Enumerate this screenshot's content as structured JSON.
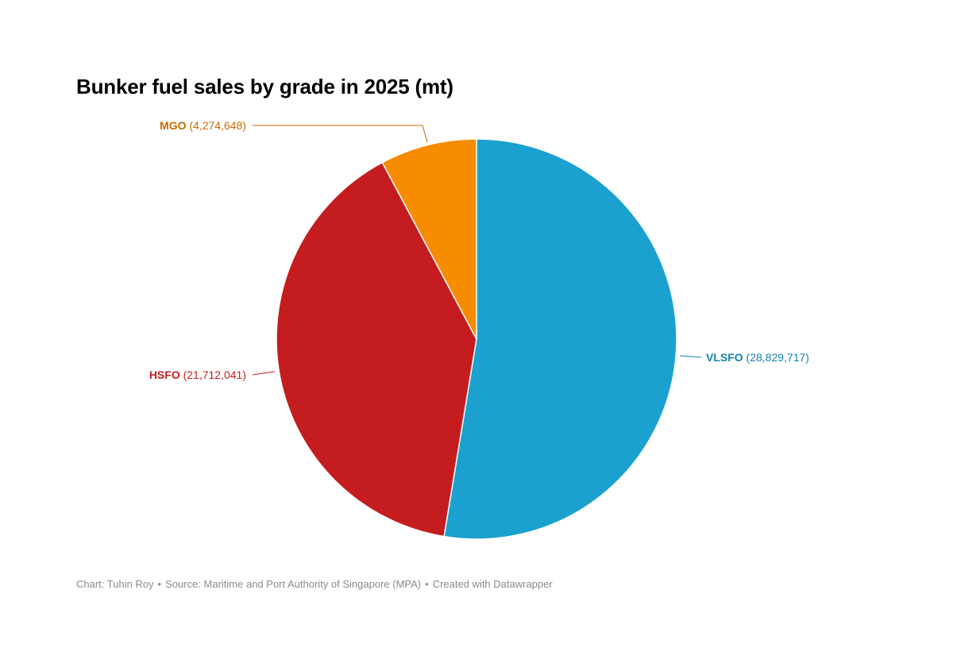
{
  "chart_data": {
    "type": "pie",
    "title": "Bunker fuel sales by grade in 2025 (mt)",
    "unit": "mt",
    "slices": [
      {
        "name": "VLSFO",
        "value": 28829717,
        "display": "(28,829,717)",
        "color": "#1aa1cf"
      },
      {
        "name": "HSFO",
        "value": 21712041,
        "display": "(21,712,041)",
        "color": "#c51d1f"
      },
      {
        "name": "MGO",
        "value": 4274648,
        "display": "(4,274,648)",
        "color": "#f78c00"
      }
    ],
    "label_colors": {
      "VLSFO": "#1283aa",
      "HSFO": "#c51d1f",
      "MGO": "#c86a00"
    },
    "start_angle": "12 o'clock",
    "direction": "clockwise"
  },
  "footer": {
    "chart_by": "Chart: Tuhin Roy",
    "source": "Source: Maritime and Port Authority of Singapore (MPA)",
    "created_with": "Created with Datawrapper",
    "separator": "•"
  }
}
